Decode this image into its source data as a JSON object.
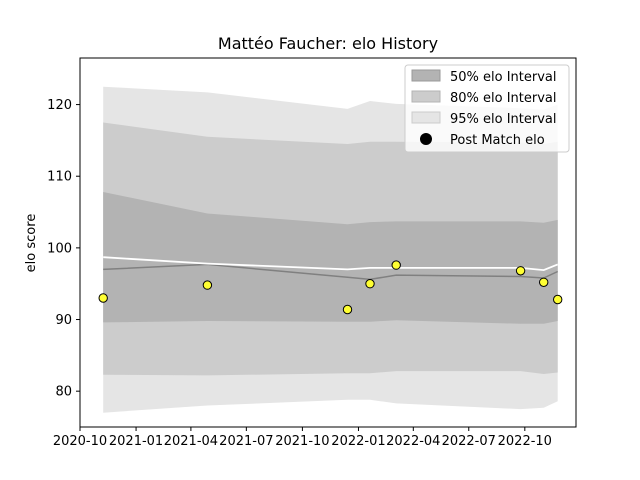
{
  "chart_data": {
    "type": "line",
    "title": "Mattéo Faucher: elo History",
    "xlabel": "",
    "ylabel": "elo score",
    "x_ticks": [
      "2020-10",
      "2021-01",
      "2021-04",
      "2021-07",
      "2021-10",
      "2022-01",
      "2022-04",
      "2022-07",
      "2022-10"
    ],
    "y_ticks": [
      "80",
      "90",
      "100",
      "110",
      "120"
    ],
    "xlim": [
      "2020-10-01",
      "2022-12-24"
    ],
    "ylim": [
      75,
      126.5
    ],
    "grid": false,
    "legend_position": "top-right",
    "legend": [
      {
        "label": "50% elo Interval",
        "key": "i50"
      },
      {
        "label": "80% elo Interval",
        "key": "i80"
      },
      {
        "label": "95% elo Interval",
        "key": "i95"
      },
      {
        "label": "Post Match elo",
        "key": "points"
      }
    ],
    "colors": {
      "i50": "#b3b3b3",
      "i80": "#cccccc",
      "i95": "#e5e5e5",
      "mean_line": "#ffffff",
      "median_line": "#808080",
      "point_fill": "#ffff33",
      "point_edge": "#000000"
    },
    "band_x": [
      "2020-11-08",
      "2021-04-28",
      "2021-12-14",
      "2022-01-20",
      "2022-03-04",
      "2022-09-24",
      "2022-11-01",
      "2022-11-24"
    ],
    "bands": {
      "i95": {
        "lower": [
          77.0,
          78.0,
          78.8,
          78.8,
          78.3,
          77.5,
          77.7,
          78.6
        ],
        "upper": [
          122.5,
          121.7,
          119.4,
          120.5,
          120.1,
          119.5,
          119.3,
          120.0
        ]
      },
      "i80": {
        "lower": [
          82.3,
          82.2,
          82.5,
          82.5,
          82.8,
          82.8,
          82.4,
          82.6
        ],
        "upper": [
          117.5,
          115.5,
          114.5,
          114.8,
          114.8,
          114.7,
          114.5,
          114.8
        ]
      },
      "i50": {
        "lower": [
          89.6,
          89.8,
          89.7,
          89.7,
          89.9,
          89.4,
          89.4,
          89.8
        ],
        "upper": [
          107.8,
          104.8,
          103.3,
          103.6,
          103.7,
          103.7,
          103.5,
          103.9
        ]
      }
    },
    "mean_line": [
      98.7,
      97.8,
      97.0,
      97.2,
      97.2,
      97.2,
      96.9,
      97.7
    ],
    "median_line": [
      97.0,
      97.7,
      95.9,
      95.6,
      96.2,
      96.0,
      95.8,
      96.7
    ],
    "points": {
      "x": [
        "2020-11-08",
        "2021-04-28",
        "2021-12-14",
        "2022-01-20",
        "2022-03-04",
        "2022-09-24",
        "2022-11-01",
        "2022-11-24"
      ],
      "y": [
        93.0,
        94.8,
        91.4,
        95.0,
        97.6,
        96.8,
        95.2,
        92.8
      ]
    }
  }
}
